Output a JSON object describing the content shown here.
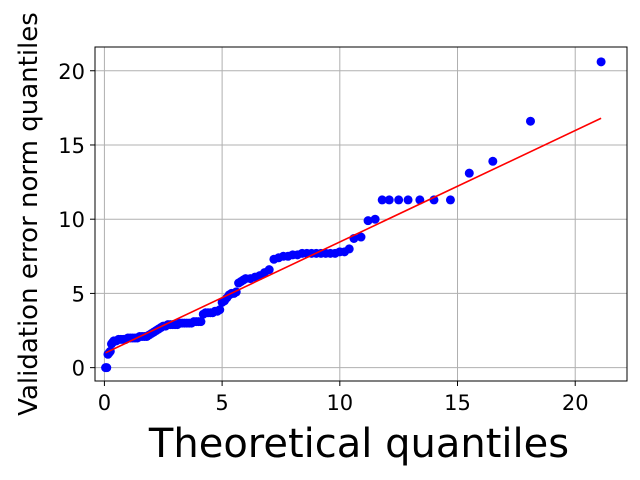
{
  "chart_data": {
    "type": "scatter",
    "title": "",
    "xlabel": "Theoretical quantiles",
    "ylabel": "Validation error norm quantiles",
    "xlim": [
      -0.4,
      22.2
    ],
    "ylim": [
      -0.9,
      21.6
    ],
    "x_ticks": [
      0,
      5,
      10,
      15,
      20
    ],
    "y_ticks": [
      0,
      5,
      10,
      15,
      20
    ],
    "x_tick_labels": [
      "0",
      "5",
      "10",
      "15",
      "20"
    ],
    "y_tick_labels": [
      "0",
      "5",
      "10",
      "15",
      "20"
    ],
    "grid": true,
    "point_color": "#0000ff",
    "line_color": "#ff0000",
    "series": [
      {
        "type": "scatter",
        "x": [
          0.05,
          0.1,
          0.15,
          0.2,
          0.25,
          0.3,
          0.35,
          0.4,
          0.5,
          0.6,
          0.7,
          0.8,
          0.9,
          1.0,
          1.1,
          1.2,
          1.3,
          1.4,
          1.5,
          1.6,
          1.7,
          1.8,
          1.9,
          2.0,
          2.1,
          2.2,
          2.3,
          2.4,
          2.5,
          2.6,
          2.7,
          2.8,
          2.9,
          3.0,
          3.1,
          3.2,
          3.3,
          3.4,
          3.5,
          3.6,
          3.7,
          3.8,
          3.9,
          4.0,
          4.1,
          4.2,
          4.3,
          4.4,
          4.5,
          4.6,
          4.7,
          4.8,
          4.9,
          5.0,
          5.1,
          5.2,
          5.3,
          5.4,
          5.5,
          5.6,
          5.7,
          5.8,
          5.9,
          6.0,
          6.2,
          6.4,
          6.6,
          6.8,
          7.0,
          7.2,
          7.4,
          7.6,
          7.8,
          8.0,
          8.2,
          8.4,
          8.6,
          8.8,
          9.0,
          9.2,
          9.4,
          9.6,
          9.8,
          10.0,
          10.2,
          10.4,
          10.6,
          10.9,
          11.2,
          11.5,
          11.8,
          12.1,
          12.5,
          12.9,
          13.4,
          14.0,
          14.7,
          15.5,
          16.5,
          18.1,
          21.1
        ],
        "y": [
          0.0,
          0.0,
          0.9,
          1.0,
          1.1,
          1.6,
          1.7,
          1.8,
          1.8,
          1.9,
          1.9,
          1.9,
          1.9,
          2.0,
          2.0,
          2.0,
          2.0,
          2.0,
          2.1,
          2.1,
          2.1,
          2.1,
          2.2,
          2.3,
          2.4,
          2.5,
          2.6,
          2.7,
          2.8,
          2.8,
          2.9,
          2.9,
          2.9,
          2.9,
          2.9,
          3.0,
          3.0,
          3.0,
          3.0,
          3.0,
          3.0,
          3.1,
          3.1,
          3.1,
          3.1,
          3.6,
          3.7,
          3.7,
          3.7,
          3.7,
          3.8,
          3.8,
          3.9,
          4.4,
          4.5,
          4.7,
          4.9,
          5.0,
          5.0,
          5.1,
          5.7,
          5.8,
          5.9,
          6.0,
          6.0,
          6.1,
          6.2,
          6.4,
          6.6,
          7.3,
          7.4,
          7.5,
          7.5,
          7.6,
          7.6,
          7.7,
          7.7,
          7.7,
          7.7,
          7.7,
          7.7,
          7.7,
          7.7,
          7.8,
          7.8,
          8.0,
          8.7,
          8.8,
          9.9,
          10.0,
          11.3,
          11.3,
          11.3,
          11.3,
          11.3,
          11.3,
          11.3,
          13.1,
          13.9,
          16.6,
          20.6
        ]
      },
      {
        "type": "line",
        "x": [
          0.05,
          21.1
        ],
        "y": [
          1.0,
          16.8
        ]
      }
    ]
  }
}
